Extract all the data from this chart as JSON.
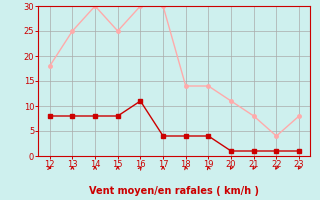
{
  "x": [
    12,
    13,
    14,
    15,
    16,
    17,
    18,
    19,
    20,
    21,
    22,
    23
  ],
  "y_moyen": [
    8,
    8,
    8,
    8,
    11,
    4,
    4,
    4,
    1,
    1,
    1,
    1
  ],
  "y_rafales": [
    18,
    25,
    30,
    25,
    30,
    30,
    14,
    14,
    11,
    8,
    4,
    8
  ],
  "color_moyen": "#cc0000",
  "color_rafales": "#ffaaaa",
  "background_color": "#cef0ee",
  "grid_color": "#aaaaaa",
  "xlabel": "Vent moyen/en rafales ( km/h )",
  "xlabel_color": "#cc0000",
  "ylim": [
    0,
    30
  ],
  "yticks": [
    0,
    5,
    10,
    15,
    20,
    25,
    30
  ],
  "xticks": [
    12,
    13,
    14,
    15,
    16,
    17,
    18,
    19,
    20,
    21,
    22,
    23
  ],
  "tick_color": "#cc0000",
  "spine_color": "#cc0000",
  "arrow_angles_deg": [
    90,
    0,
    0,
    0,
    45,
    0,
    340,
    340,
    220,
    220,
    220,
    225
  ]
}
